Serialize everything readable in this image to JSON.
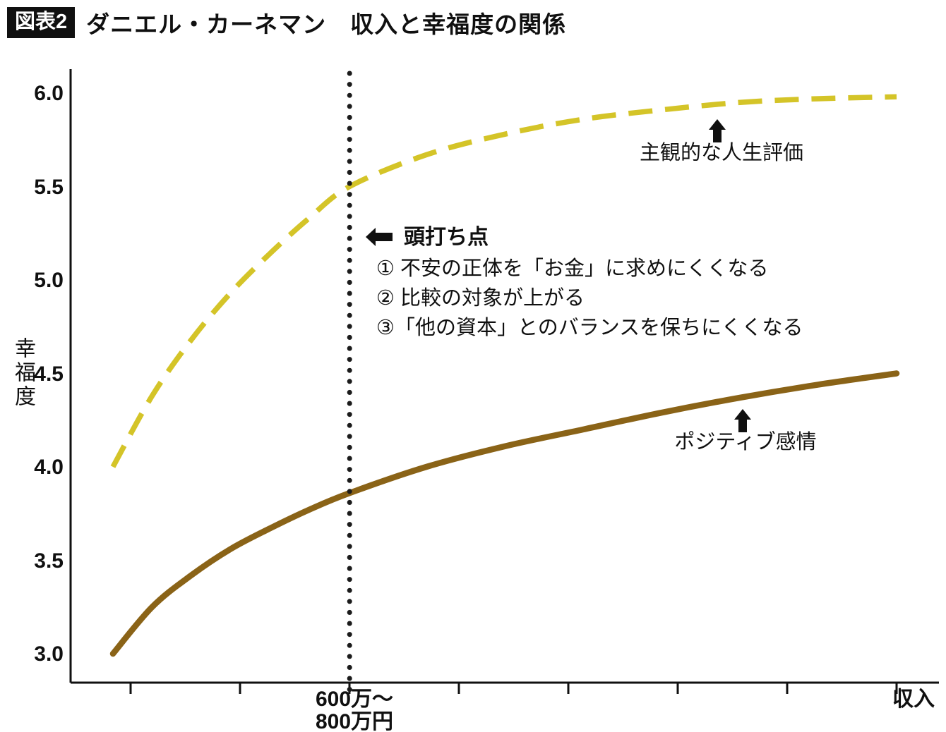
{
  "header": {
    "badge": "図表2",
    "title": "ダニエル・カーネマン　収入と幸福度の関係"
  },
  "axis": {
    "y_label": "幸福度",
    "y_tick_labels": [
      "6.0",
      "5.5",
      "5.0",
      "4.5",
      "4.0",
      "3.5",
      "3.0"
    ],
    "x_tick_line1": "600万〜",
    "x_tick_line2": "800万円",
    "x_end_label": "収入"
  },
  "annotations": {
    "plateau_label": "頭打ち点",
    "bullet1": "① 不安の正体を「お金」に求めにくくなる",
    "bullet2": "② 比較の対象が上がる",
    "bullet3": "③「他の資本」とのバランスを保ちにくくなる",
    "series1_label": "主観的な人生評価",
    "series2_label": "ポジティブ感情"
  },
  "icons": {
    "plateau_arrow": "left-arrow",
    "series1_pointer": "up-arrow",
    "series2_pointer": "up-arrow"
  },
  "colors": {
    "life_evaluation_line": "#d4c428",
    "positive_emotion_line": "#8a6317",
    "plateau_dotted_line": "#1b1b1b",
    "axis": "#101010"
  },
  "chart_data": {
    "type": "line",
    "title": "ダニエル・カーネマン　収入と幸福度の関係",
    "xlabel": "収入",
    "ylabel": "幸福度",
    "ylim": [
      2.9,
      6.15
    ],
    "yticks": [
      3.0,
      3.5,
      4.0,
      4.5,
      5.0,
      5.5,
      6.0
    ],
    "x_tick_labels": [
      "600万〜800万円"
    ],
    "grid": false,
    "legend": "direct labels with up-arrows on plot",
    "plateau_x": 0.302,
    "plateau_label": "頭打ち点",
    "series": [
      {
        "name": "主観的な人生評価",
        "style": "dashed",
        "color": "#d4c428",
        "x": [
          0,
          0.05,
          0.1,
          0.15,
          0.2,
          0.25,
          0.302,
          0.4,
          0.5,
          0.6,
          0.7,
          0.8,
          0.9,
          1.0
        ],
        "values": [
          4.0,
          4.38,
          4.68,
          4.93,
          5.14,
          5.33,
          5.5,
          5.67,
          5.78,
          5.86,
          5.91,
          5.95,
          5.97,
          5.98
        ]
      },
      {
        "name": "ポジティブ感情",
        "style": "solid",
        "color": "#8a6317",
        "x": [
          0,
          0.05,
          0.1,
          0.15,
          0.2,
          0.25,
          0.302,
          0.4,
          0.5,
          0.6,
          0.7,
          0.8,
          0.9,
          1.0
        ],
        "values": [
          3.0,
          3.25,
          3.42,
          3.56,
          3.67,
          3.77,
          3.86,
          4.0,
          4.11,
          4.2,
          4.29,
          4.37,
          4.44,
          4.5
        ]
      }
    ]
  }
}
